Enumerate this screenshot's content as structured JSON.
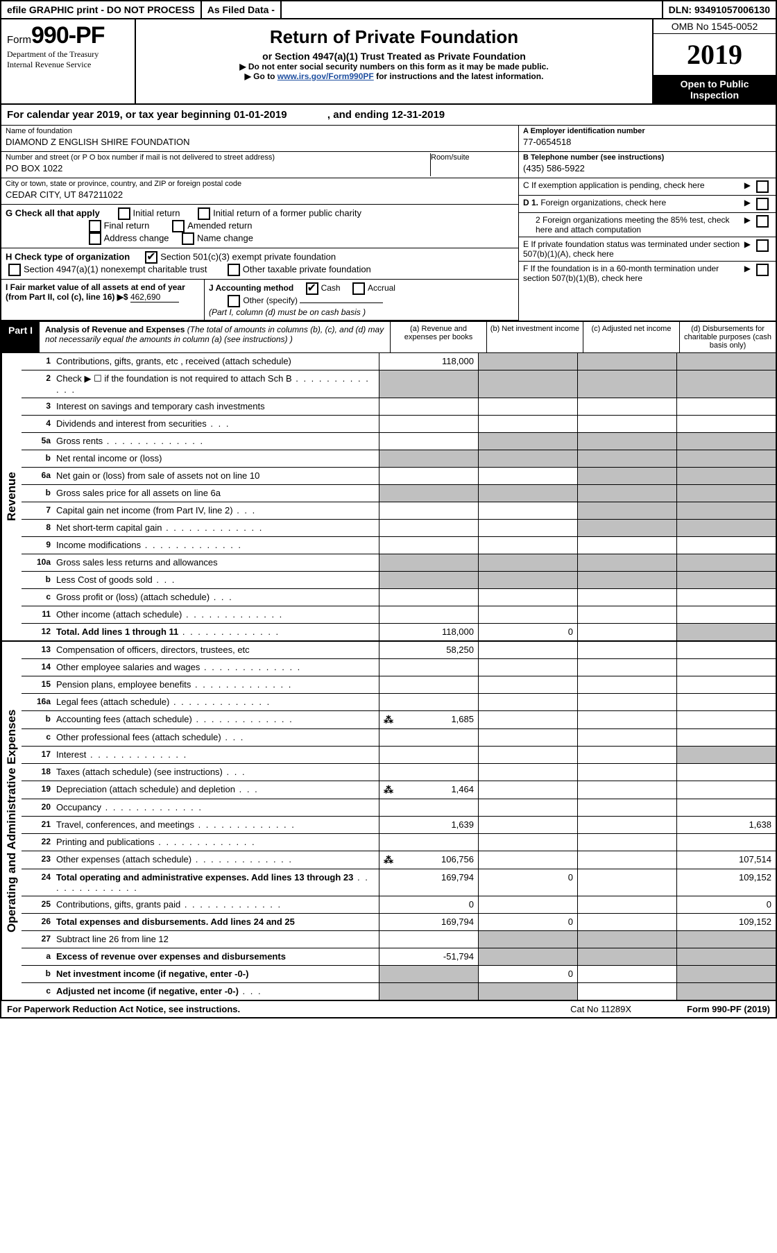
{
  "top": {
    "efile": "efile GRAPHIC print - DO NOT PROCESS",
    "asfiled": "As Filed Data -",
    "dln": "DLN: 93491057006130"
  },
  "form": {
    "form_word": "Form",
    "form_num": "990-PF",
    "dept1": "Department of the Treasury",
    "dept2": "Internal Revenue Service"
  },
  "title": {
    "main": "Return of Private Foundation",
    "sub": "or Section 4947(a)(1) Trust Treated as Private Foundation",
    "instr1": "▶ Do not enter social security numbers on this form as it may be made public.",
    "instr2_pre": "▶ Go to ",
    "instr2_link": "www.irs.gov/Form990PF",
    "instr2_post": " for instructions and the latest information."
  },
  "yearbox": {
    "omb": "OMB No 1545-0052",
    "year": "2019",
    "inspection": "Open to Public Inspection"
  },
  "calyear": {
    "pre": "For calendar year 2019, or tax year beginning ",
    "begin": "01-01-2019",
    "mid": " , and ending ",
    "end": "12-31-2019"
  },
  "entity": {
    "name_label": "Name of foundation",
    "name": "DIAMOND Z ENGLISH SHIRE FOUNDATION",
    "addr_label": "Number and street (or P O  box number if mail is not delivered to street address)",
    "room_label": "Room/suite",
    "addr": "PO BOX 1022",
    "city_label": "City or town, state or province, country, and ZIP or foreign postal code",
    "city": "CEDAR CITY, UT  847211022"
  },
  "right": {
    "a_label": "A Employer identification number",
    "a_val": "77-0654518",
    "b_label": "B Telephone number (see instructions)",
    "b_val": "(435) 586-5922",
    "c": "C If exemption application is pending, check here",
    "d1": "D 1. Foreign organizations, check here",
    "d2": "2  Foreign organizations meeting the 85% test, check here and attach computation",
    "e": "E  If private foundation status was terminated under section 507(b)(1)(A), check here",
    "f": "F  If the foundation is in a 60-month termination under section 507(b)(1)(B), check here"
  },
  "g": {
    "label": "G Check all that apply",
    "opts": [
      "Initial return",
      "Initial return of a former public charity",
      "Final return",
      "Amended return",
      "Address change",
      "Name change"
    ]
  },
  "h": {
    "label": "H Check type of organization",
    "opt1": "Section 501(c)(3) exempt private foundation",
    "opt2": "Section 4947(a)(1) nonexempt charitable trust",
    "opt3": "Other taxable private foundation"
  },
  "i": {
    "label": "I Fair market value of all assets at end of year (from Part II, col  (c), line 16) ▶$ ",
    "val": "462,690"
  },
  "j": {
    "label": "J Accounting method",
    "opts": [
      "Cash",
      "Accrual",
      "Other (specify)"
    ],
    "note": "(Part I, column (d) must be on cash basis )"
  },
  "part1": {
    "label": "Part I",
    "title": "Analysis of Revenue and Expenses",
    "note": " (The total of amounts in columns (b), (c), and (d) may not necessarily equal the amounts in column (a) (see instructions) )",
    "cols": {
      "a": "(a)   Revenue and expenses per books",
      "b": "(b)   Net investment income",
      "c": "(c)   Adjusted net income",
      "d": "(d)   Disbursements for charitable purposes (cash basis only)"
    }
  },
  "sections": {
    "revenue": "Revenue",
    "opex": "Operating and Administrative Expenses"
  },
  "rows": [
    {
      "n": "1",
      "d": "Contributions, gifts, grants, etc , received (attach schedule)",
      "a": "118,000"
    },
    {
      "n": "2",
      "d": "Check ▶ ☐ if the foundation is not required to attach Sch  B",
      "dots": true
    },
    {
      "n": "3",
      "d": "Interest on savings and temporary cash investments"
    },
    {
      "n": "4",
      "d": "Dividends and interest from securities",
      "dots": "short"
    },
    {
      "n": "5a",
      "d": "Gross rents",
      "dots": true
    },
    {
      "n": "b",
      "d": "Net rental income or (loss)",
      "half": true
    },
    {
      "n": "6a",
      "d": "Net gain or (loss) from sale of assets not on line 10"
    },
    {
      "n": "b",
      "d": "Gross sales price for all assets on line 6a",
      "half": true
    },
    {
      "n": "7",
      "d": "Capital gain net income (from Part IV, line 2)",
      "dots": "short"
    },
    {
      "n": "8",
      "d": "Net short-term capital gain",
      "dots": true
    },
    {
      "n": "9",
      "d": "Income modifications",
      "dots": true
    },
    {
      "n": "10a",
      "d": "Gross sales less returns and allowances",
      "half": true
    },
    {
      "n": "b",
      "d": "Less  Cost of goods sold",
      "dots": "short",
      "half": true
    },
    {
      "n": "c",
      "d": "Gross profit or (loss) (attach schedule)",
      "dots": "short"
    },
    {
      "n": "11",
      "d": "Other income (attach schedule)",
      "dots": true
    },
    {
      "n": "12",
      "d": "Total. Add lines 1 through 11",
      "dots": true,
      "bold": true,
      "a": "118,000",
      "b": "0"
    }
  ],
  "rows2": [
    {
      "n": "13",
      "d": "Compensation of officers, directors, trustees, etc",
      "a": "58,250"
    },
    {
      "n": "14",
      "d": "Other employee salaries and wages",
      "dots": true
    },
    {
      "n": "15",
      "d": "Pension plans, employee benefits",
      "dots": true
    },
    {
      "n": "16a",
      "d": "Legal fees (attach schedule)",
      "dots": true
    },
    {
      "n": "b",
      "d": "Accounting fees (attach schedule)",
      "dots": true,
      "icon": true,
      "a": "1,685"
    },
    {
      "n": "c",
      "d": "Other professional fees (attach schedule)",
      "dots": "short"
    },
    {
      "n": "17",
      "d": "Interest",
      "dots": true
    },
    {
      "n": "18",
      "d": "Taxes (attach schedule) (see instructions)",
      "dots": "short"
    },
    {
      "n": "19",
      "d": "Depreciation (attach schedule) and depletion",
      "dots": "short",
      "icon": true,
      "a": "1,464"
    },
    {
      "n": "20",
      "d": "Occupancy",
      "dots": true
    },
    {
      "n": "21",
      "d": "Travel, conferences, and meetings",
      "dots": true,
      "a": "1,639",
      "dd": "1,638"
    },
    {
      "n": "22",
      "d": "Printing and publications",
      "dots": true
    },
    {
      "n": "23",
      "d": "Other expenses (attach schedule)",
      "dots": true,
      "icon": true,
      "a": "106,756",
      "dd": "107,514"
    },
    {
      "n": "24",
      "d": "Total operating and administrative expenses. Add lines 13 through 23",
      "dots": true,
      "bold": true,
      "a": "169,794",
      "b": "0",
      "dd": "109,152"
    },
    {
      "n": "25",
      "d": "Contributions, gifts, grants paid",
      "dots": true,
      "a": "0",
      "dd": "0"
    },
    {
      "n": "26",
      "d": "Total expenses and disbursements. Add lines 24 and 25",
      "bold": true,
      "a": "169,794",
      "b": "0",
      "dd": "109,152"
    },
    {
      "n": "27",
      "d": "Subtract line 26 from line 12"
    },
    {
      "n": "a",
      "d": "Excess of revenue over expenses and disbursements",
      "bold": true,
      "a": "-51,794"
    },
    {
      "n": "b",
      "d": "Net investment income (if negative, enter -0-)",
      "bold": true,
      "b": "0"
    },
    {
      "n": "c",
      "d": "Adjusted net income (if negative, enter -0-)",
      "dots": "short",
      "bold": true
    }
  ],
  "footer": {
    "left": "For Paperwork Reduction Act Notice, see instructions.",
    "mid": "Cat No  11289X",
    "right": "Form 990-PF (2019)"
  }
}
